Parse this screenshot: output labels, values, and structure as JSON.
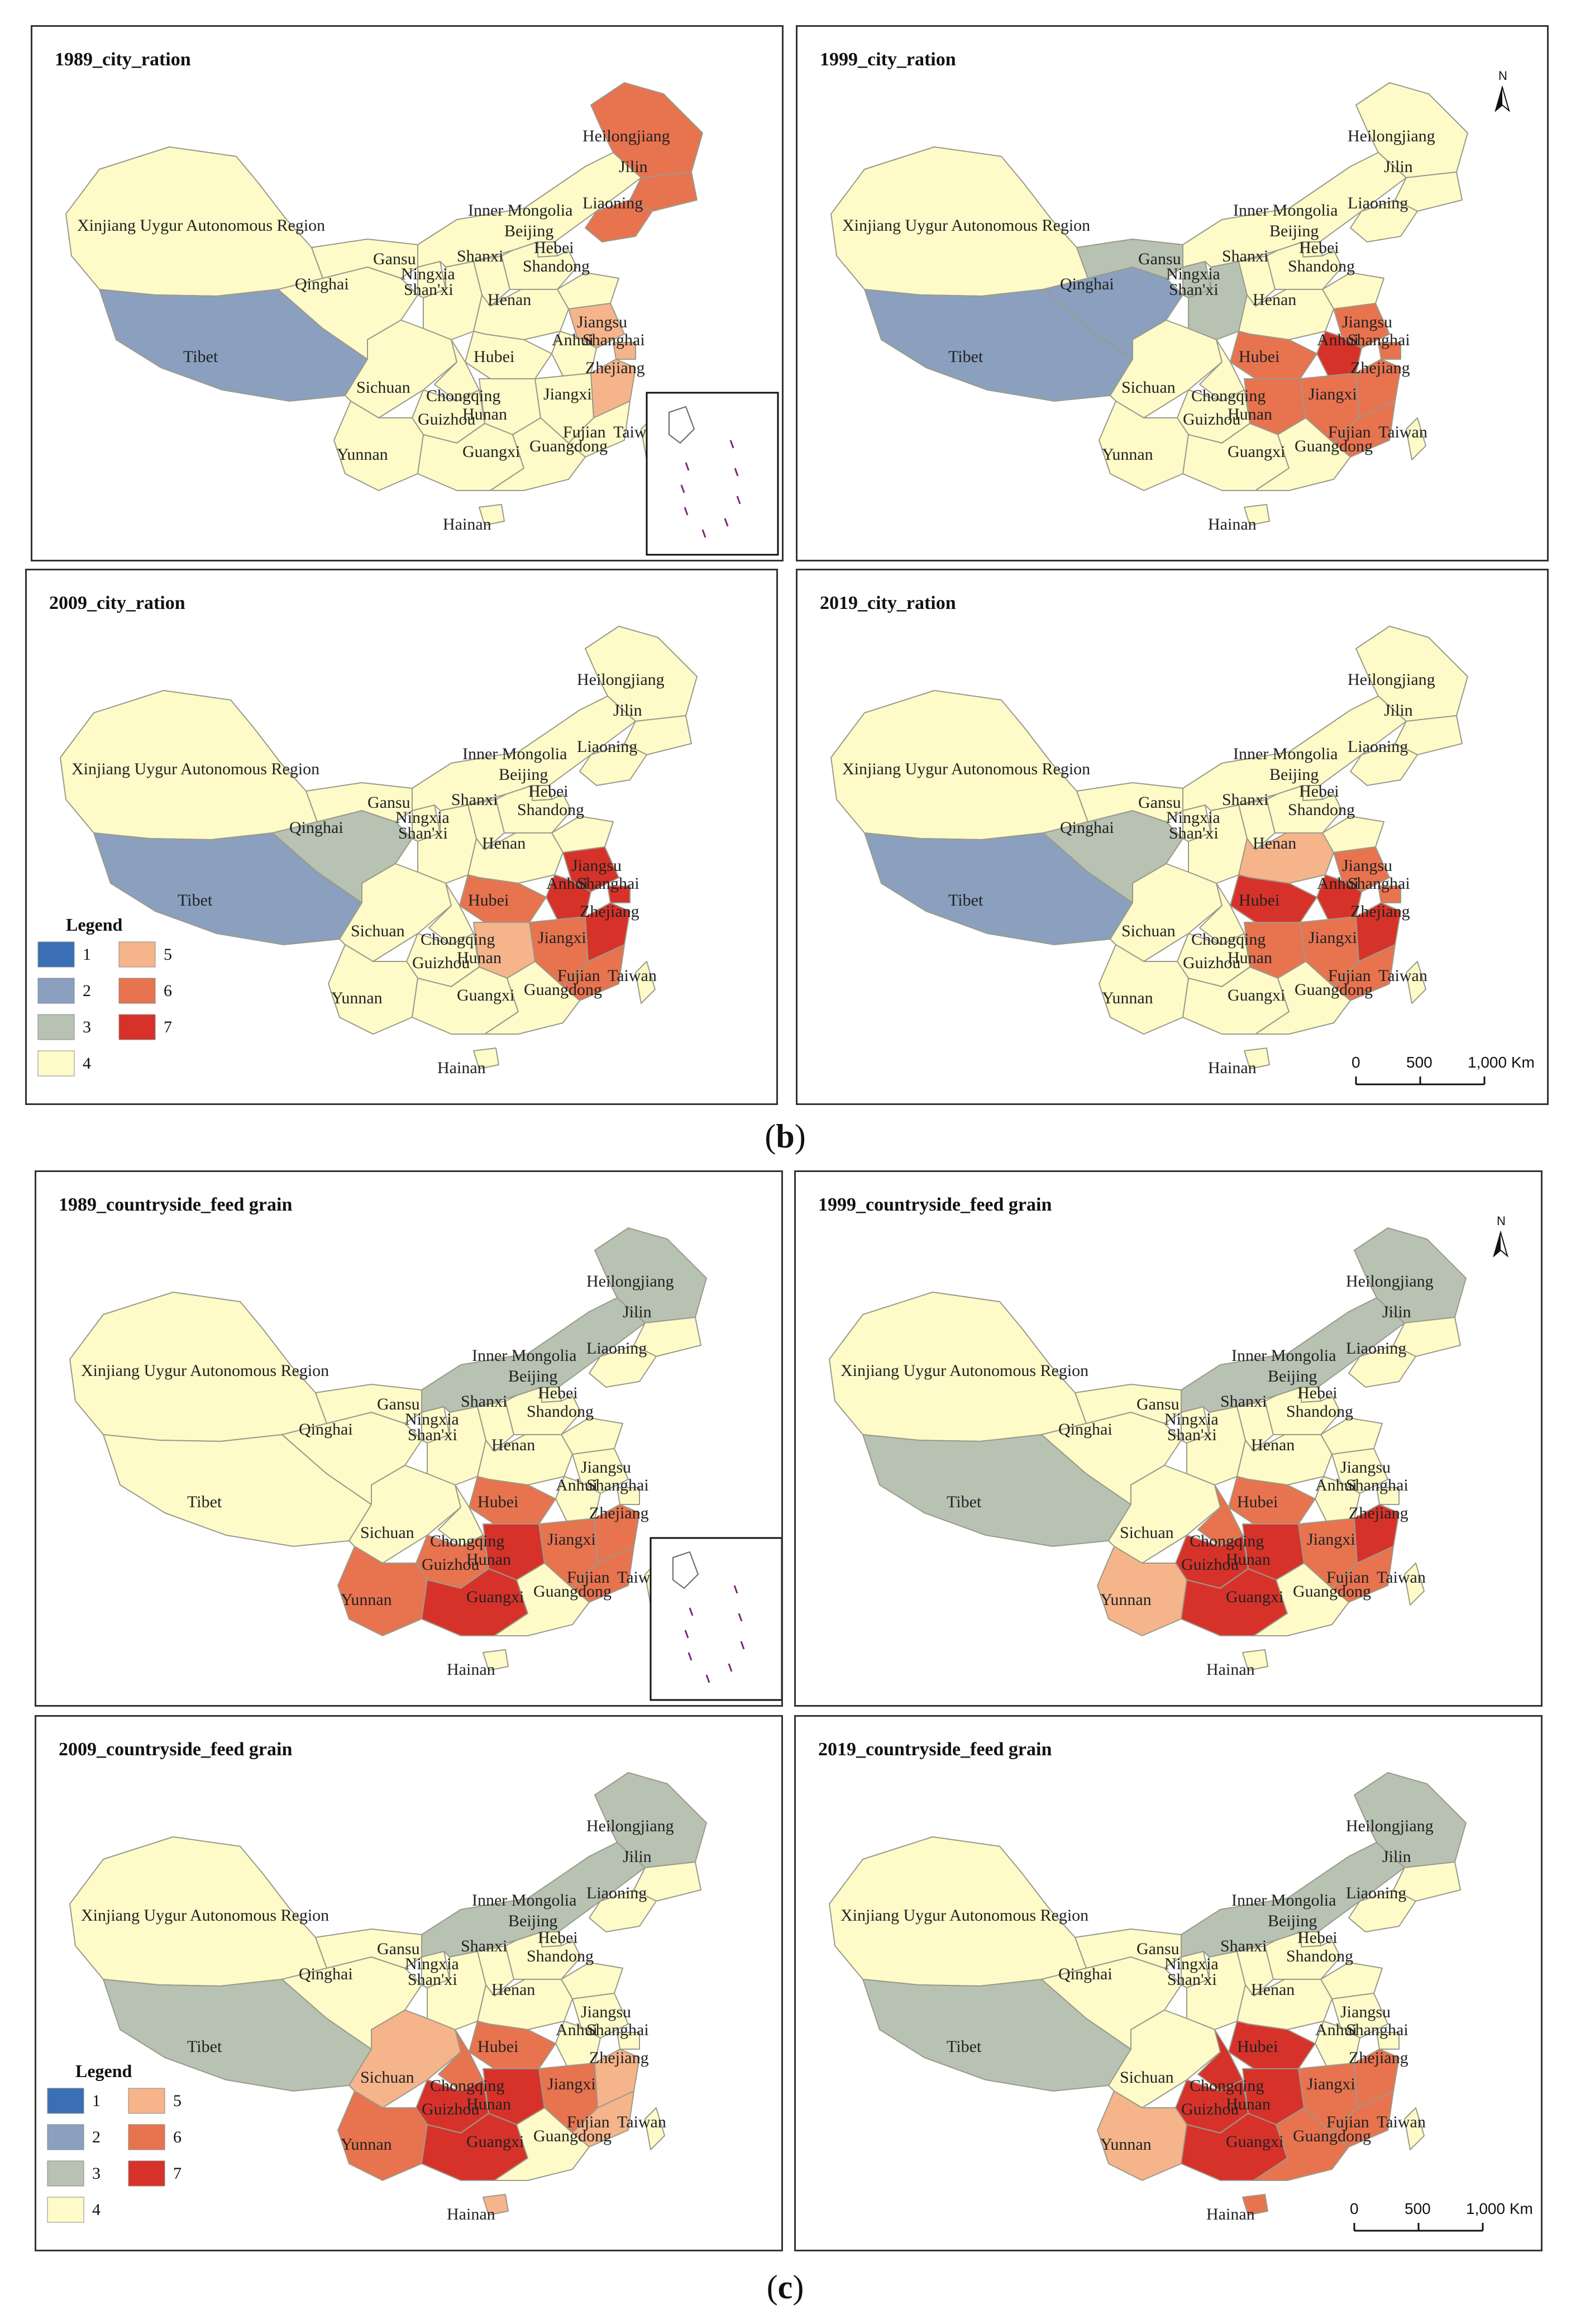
{
  "figure": {
    "caption_b": "b",
    "caption_c": "c"
  },
  "colors": {
    "1": "#3a6fb5",
    "2": "#8aa0be",
    "3": "#b7c2b3",
    "4": "#fefbc9",
    "5": "#f6b48a",
    "6": "#e8734f",
    "7": "#d7322a"
  },
  "legend": {
    "title": "Legend",
    "classes": [
      "1",
      "2",
      "3",
      "4",
      "5",
      "6",
      "7"
    ]
  },
  "scale_bar": {
    "ticks": [
      "0",
      "500",
      "1,000 Km"
    ]
  },
  "north_label": "N",
  "province_labels": {
    "xinjiang": "Xinjiang Uygur Autonomous Region",
    "tibet": "Tibet",
    "qinghai": "Qinghai",
    "gansu": "Gansu",
    "ningxia": "Ningxia",
    "shaanxi": "Shan'xi",
    "shanxi": "Shanxi",
    "innermongolia": "Inner Mongolia",
    "heilongjiang": "Heilongjiang",
    "jilin": "Jilin",
    "liaoning": "Liaoning",
    "beijing": "Beijing",
    "hebei": "Hebei",
    "shandong": "Shandong",
    "henan": "Henan",
    "jiangsu": "Jiangsu",
    "anhui": "Anhui",
    "shanghai": "Shanghai",
    "hubei": "Hubei",
    "sichuan": "Sichuan",
    "chongqing": "Chongqing",
    "hunan": "Hunan",
    "jiangxi": "Jiangxi",
    "zhejiang": "Zhejiang",
    "fujian": "Fujian",
    "guizhou": "Guizhou",
    "yunnan": "Yunnan",
    "guangxi": "Guangxi",
    "guangdong": "Guangdong",
    "hainan": "Hainan",
    "taiwan": "Taiwan"
  },
  "panels": [
    {
      "title": "1989_city_ration",
      "classes": {
        "xinjiang": 4,
        "tibet": 2,
        "qinghai": 4,
        "gansu": 4,
        "ningxia": 4,
        "shaanxi": 4,
        "shanxi": 4,
        "innermongolia": 4,
        "heilongjiang": 6,
        "jilin": 6,
        "liaoning": 6,
        "beijing": 4,
        "hebei": 4,
        "shandong": 4,
        "henan": 4,
        "jiangsu": 5,
        "anhui": 4,
        "shanghai": 5,
        "hubei": 4,
        "sichuan": 4,
        "chongqing": 4,
        "hunan": 4,
        "jiangxi": 4,
        "zhejiang": 5,
        "fujian": 4,
        "guizhou": 4,
        "yunnan": 4,
        "guangxi": 4,
        "guangdong": 4,
        "hainan": 4,
        "taiwan": 4
      }
    },
    {
      "title": "1999_city_ration",
      "classes": {
        "xinjiang": 4,
        "tibet": 2,
        "qinghai": 2,
        "gansu": 3,
        "ningxia": 3,
        "shaanxi": 3,
        "shanxi": 4,
        "innermongolia": 4,
        "heilongjiang": 4,
        "jilin": 4,
        "liaoning": 4,
        "beijing": 4,
        "hebei": 4,
        "shandong": 4,
        "henan": 4,
        "jiangsu": 6,
        "anhui": 7,
        "shanghai": 6,
        "hubei": 6,
        "sichuan": 4,
        "chongqing": 4,
        "hunan": 6,
        "jiangxi": 6,
        "zhejiang": 6,
        "fujian": 6,
        "guizhou": 4,
        "yunnan": 4,
        "guangxi": 4,
        "guangdong": 4,
        "hainan": 4,
        "taiwan": 4
      }
    },
    {
      "title": "2009_city_ration",
      "classes": {
        "xinjiang": 4,
        "tibet": 2,
        "qinghai": 3,
        "gansu": 4,
        "ningxia": 4,
        "shaanxi": 4,
        "shanxi": 4,
        "innermongolia": 4,
        "heilongjiang": 4,
        "jilin": 4,
        "liaoning": 4,
        "beijing": 4,
        "hebei": 4,
        "shandong": 4,
        "henan": 4,
        "jiangsu": 7,
        "anhui": 7,
        "shanghai": 7,
        "hubei": 6,
        "sichuan": 4,
        "chongqing": 4,
        "hunan": 5,
        "jiangxi": 6,
        "zhejiang": 7,
        "fujian": 6,
        "guizhou": 4,
        "yunnan": 4,
        "guangxi": 4,
        "guangdong": 4,
        "hainan": 4,
        "taiwan": 4
      }
    },
    {
      "title": "2019_city_ration",
      "classes": {
        "xinjiang": 4,
        "tibet": 2,
        "qinghai": 3,
        "gansu": 4,
        "ningxia": 4,
        "shaanxi": 4,
        "shanxi": 4,
        "innermongolia": 4,
        "heilongjiang": 4,
        "jilin": 4,
        "liaoning": 4,
        "beijing": 4,
        "hebei": 4,
        "shandong": 4,
        "henan": 5,
        "jiangsu": 6,
        "anhui": 7,
        "shanghai": 6,
        "hubei": 7,
        "sichuan": 4,
        "chongqing": 4,
        "hunan": 6,
        "jiangxi": 6,
        "zhejiang": 7,
        "fujian": 6,
        "guizhou": 4,
        "yunnan": 4,
        "guangxi": 4,
        "guangdong": 4,
        "hainan": 4,
        "taiwan": 4
      }
    },
    {
      "title": "1989_countryside_feed grain",
      "classes": {
        "xinjiang": 4,
        "tibet": 4,
        "qinghai": 4,
        "gansu": 4,
        "ningxia": 4,
        "shaanxi": 4,
        "shanxi": 4,
        "innermongolia": 3,
        "heilongjiang": 3,
        "jilin": 4,
        "liaoning": 4,
        "beijing": 4,
        "hebei": 4,
        "shandong": 4,
        "henan": 4,
        "jiangsu": 4,
        "anhui": 4,
        "shanghai": 4,
        "hubei": 6,
        "sichuan": 4,
        "chongqing": 4,
        "hunan": 7,
        "jiangxi": 6,
        "zhejiang": 6,
        "fujian": 6,
        "guizhou": 6,
        "yunnan": 6,
        "guangxi": 7,
        "guangdong": 4,
        "hainan": 4,
        "taiwan": 4
      }
    },
    {
      "title": "1999_countryside_feed grain",
      "classes": {
        "xinjiang": 4,
        "tibet": 3,
        "qinghai": 4,
        "gansu": 4,
        "ningxia": 4,
        "shaanxi": 4,
        "shanxi": 4,
        "innermongolia": 3,
        "heilongjiang": 3,
        "jilin": 4,
        "liaoning": 4,
        "beijing": 4,
        "hebei": 4,
        "shandong": 4,
        "henan": 4,
        "jiangsu": 4,
        "anhui": 4,
        "shanghai": 4,
        "hubei": 6,
        "sichuan": 4,
        "chongqing": 6,
        "hunan": 7,
        "jiangxi": 6,
        "zhejiang": 7,
        "fujian": 6,
        "guizhou": 7,
        "yunnan": 5,
        "guangxi": 7,
        "guangdong": 4,
        "hainan": 4,
        "taiwan": 4
      }
    },
    {
      "title": "2009_countryside_feed grain",
      "classes": {
        "xinjiang": 4,
        "tibet": 3,
        "qinghai": 4,
        "gansu": 4,
        "ningxia": 4,
        "shaanxi": 4,
        "shanxi": 4,
        "innermongolia": 3,
        "heilongjiang": 3,
        "jilin": 4,
        "liaoning": 4,
        "beijing": 4,
        "hebei": 4,
        "shandong": 4,
        "henan": 4,
        "jiangsu": 4,
        "anhui": 4,
        "shanghai": 4,
        "hubei": 6,
        "sichuan": 5,
        "chongqing": 6,
        "hunan": 7,
        "jiangxi": 6,
        "zhejiang": 5,
        "fujian": 5,
        "guizhou": 7,
        "yunnan": 6,
        "guangxi": 7,
        "guangdong": 4,
        "hainan": 5,
        "taiwan": 4
      }
    },
    {
      "title": "2019_countryside_feed grain",
      "classes": {
        "xinjiang": 4,
        "tibet": 3,
        "qinghai": 4,
        "gansu": 4,
        "ningxia": 4,
        "shaanxi": 4,
        "shanxi": 4,
        "innermongolia": 3,
        "heilongjiang": 3,
        "jilin": 4,
        "liaoning": 4,
        "beijing": 4,
        "hebei": 4,
        "shandong": 4,
        "henan": 4,
        "jiangsu": 4,
        "anhui": 4,
        "shanghai": 4,
        "hubei": 7,
        "sichuan": 4,
        "chongqing": 7,
        "hunan": 7,
        "jiangxi": 6,
        "zhejiang": 6,
        "fujian": 6,
        "guizhou": 7,
        "yunnan": 5,
        "guangxi": 7,
        "guangdong": 6,
        "hainan": 6,
        "taiwan": 4
      }
    }
  ]
}
